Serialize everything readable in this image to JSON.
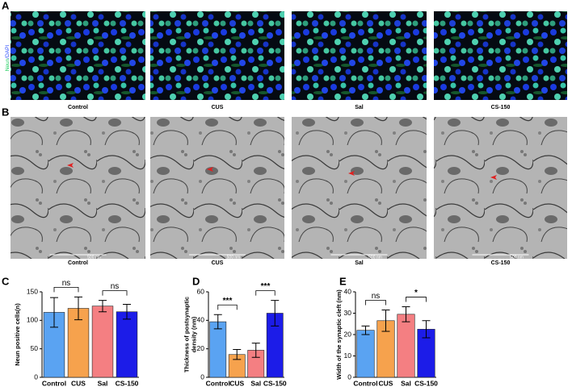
{
  "panel_a": {
    "label": "A",
    "stain": [
      "Neun",
      "/DAPI"
    ],
    "captions": [
      "Control",
      "CUS",
      "Sal",
      "CS-150"
    ]
  },
  "panel_b": {
    "label": "B",
    "scale_bar": "500 nm",
    "captions": [
      "Control",
      "CUS",
      "Sal",
      "CS-150"
    ]
  },
  "chart_data": [
    {
      "type": "bar",
      "label": "C",
      "ylabel": [
        "Neun positive cells(n)"
      ],
      "categories": [
        "Control",
        "CUS",
        "Sal",
        "CS-150"
      ],
      "values": [
        114,
        121,
        125,
        115
      ],
      "errors": [
        26,
        20,
        10,
        13
      ],
      "colors": [
        "#5aa3f2",
        "#f6a24d",
        "#f47f82",
        "#1c1ce8"
      ],
      "ylim": [
        0,
        150
      ],
      "yticks": [
        0,
        50,
        100,
        150
      ],
      "annotations": [
        {
          "text": "ns",
          "between": [
            0,
            1
          ]
        },
        {
          "text": "ns",
          "between": [
            2,
            3
          ]
        }
      ]
    },
    {
      "type": "bar",
      "label": "D",
      "ylabel": [
        "Thickness of postsynaptic",
        "density (nm)"
      ],
      "categories": [
        "Control",
        "CUS",
        "Sal",
        "CS-150"
      ],
      "values": [
        39,
        16,
        19,
        45
      ],
      "errors": [
        5,
        3.5,
        5,
        9
      ],
      "colors": [
        "#5aa3f2",
        "#f6a24d",
        "#f47f82",
        "#1c1ce8"
      ],
      "ylim": [
        0,
        60
      ],
      "yticks": [
        0,
        20,
        40,
        60
      ],
      "annotations": [
        {
          "text": "***",
          "between": [
            0,
            1
          ]
        },
        {
          "text": "***",
          "between": [
            2,
            3
          ]
        }
      ]
    },
    {
      "type": "bar",
      "label": "E",
      "ylabel": [
        "Width of the synaptic cleft (nm)"
      ],
      "categories": [
        "Control",
        "CUS",
        "Sal",
        "CS-150"
      ],
      "values": [
        22,
        26.5,
        29.5,
        22.5
      ],
      "errors": [
        2,
        5,
        3.5,
        4
      ],
      "colors": [
        "#5aa3f2",
        "#f6a24d",
        "#f47f82",
        "#1c1ce8"
      ],
      "ylim": [
        0,
        40
      ],
      "yticks": [
        0,
        10,
        20,
        30,
        40
      ],
      "annotations": [
        {
          "text": "ns",
          "between": [
            0,
            1
          ]
        },
        {
          "text": "*",
          "between": [
            2,
            3
          ]
        }
      ]
    }
  ]
}
